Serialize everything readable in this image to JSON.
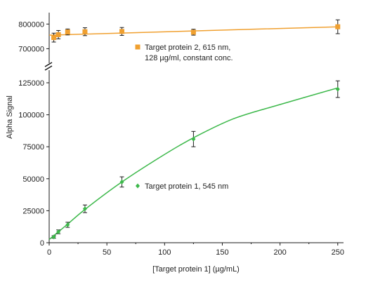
{
  "chart_data": {
    "type": "scatter",
    "title": "",
    "xlabel": "[Target protein 1] (µg/mL)",
    "ylabel": "Alpha Signal",
    "xlim": [
      0,
      255
    ],
    "xticks": [
      0,
      50,
      100,
      150,
      200,
      250
    ],
    "x_tick_labels": [
      "0",
      "50",
      "100",
      "150",
      "200",
      "250"
    ],
    "axis_break": true,
    "lower_ylim": [
      0,
      125000
    ],
    "lower_yticks": [
      0,
      25000,
      50000,
      75000,
      100000,
      125000
    ],
    "lower_y_tick_labels": [
      "0",
      "25000",
      "50000",
      "75000",
      "100000",
      "125000"
    ],
    "upper_ylim": [
      650000,
      835000
    ],
    "upper_yticks": [
      700000,
      800000
    ],
    "upper_y_tick_labels": [
      "700000",
      "800000"
    ],
    "grid": false,
    "series": [
      {
        "name": "Target protein 2, 615 nm, 128 µg/ml, constant conc.",
        "legend_lines": [
          "Target protein 2, 615 nm,",
          "128 µg/ml, constant conc."
        ],
        "panel": "upper",
        "color": "#f0a030",
        "marker": "square",
        "x": [
          4,
          8,
          16,
          31,
          63,
          125,
          250
        ],
        "y": [
          745000,
          757000,
          768000,
          769000,
          770000,
          767000,
          789000
        ],
        "error": [
          18000,
          17000,
          12000,
          16000,
          16000,
          12000,
          28000
        ],
        "fit_x": [
          0,
          250
        ],
        "fit_y": [
          755000,
          789000
        ]
      },
      {
        "name": "Target protein 1, 545 nm",
        "legend_lines": [
          "Target protein 1, 545 nm"
        ],
        "panel": "lower",
        "color": "#3cb84a",
        "marker": "diamond",
        "x": [
          4,
          8,
          16,
          31,
          63,
          125,
          250
        ],
        "y": [
          4500,
          8500,
          14000,
          26500,
          47500,
          81000,
          120000
        ],
        "error": [
          1000,
          1500,
          2000,
          3000,
          4000,
          6000,
          6500
        ],
        "fit_x": [
          0,
          8,
          16,
          31,
          63,
          100,
          125,
          160,
          200,
          250
        ],
        "fit_y": [
          2500,
          8500,
          14500,
          26000,
          47500,
          69000,
          82000,
          97000,
          108000,
          121000
        ]
      }
    ]
  }
}
